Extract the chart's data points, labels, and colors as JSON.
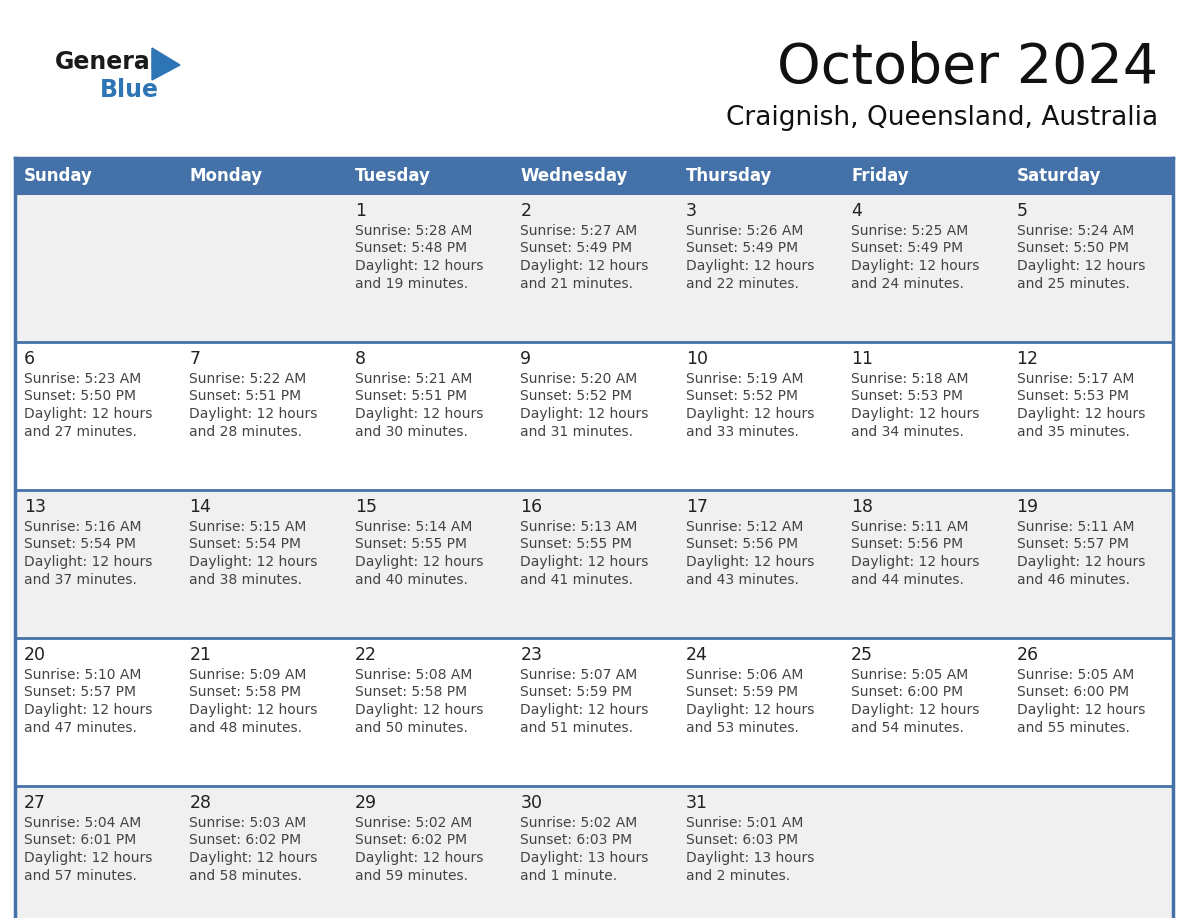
{
  "title": "October 2024",
  "subtitle": "Craignish, Queensland, Australia",
  "header_bg_color": "#4472A8",
  "header_text_color": "#FFFFFF",
  "day_headers": [
    "Sunday",
    "Monday",
    "Tuesday",
    "Wednesday",
    "Thursday",
    "Friday",
    "Saturday"
  ],
  "text_color": "#444444",
  "line_color": "#4472A8",
  "row_bg_colors": [
    "#F0F0F0",
    "#FFFFFF",
    "#F0F0F0",
    "#FFFFFF",
    "#F0F0F0"
  ],
  "days": [
    {
      "day": 1,
      "col": 2,
      "row": 0,
      "sunrise": "5:28 AM",
      "sunset": "5:48 PM",
      "daylight_l1": "Daylight: 12 hours",
      "daylight_l2": "and 19 minutes."
    },
    {
      "day": 2,
      "col": 3,
      "row": 0,
      "sunrise": "5:27 AM",
      "sunset": "5:49 PM",
      "daylight_l1": "Daylight: 12 hours",
      "daylight_l2": "and 21 minutes."
    },
    {
      "day": 3,
      "col": 4,
      "row": 0,
      "sunrise": "5:26 AM",
      "sunset": "5:49 PM",
      "daylight_l1": "Daylight: 12 hours",
      "daylight_l2": "and 22 minutes."
    },
    {
      "day": 4,
      "col": 5,
      "row": 0,
      "sunrise": "5:25 AM",
      "sunset": "5:49 PM",
      "daylight_l1": "Daylight: 12 hours",
      "daylight_l2": "and 24 minutes."
    },
    {
      "day": 5,
      "col": 6,
      "row": 0,
      "sunrise": "5:24 AM",
      "sunset": "5:50 PM",
      "daylight_l1": "Daylight: 12 hours",
      "daylight_l2": "and 25 minutes."
    },
    {
      "day": 6,
      "col": 0,
      "row": 1,
      "sunrise": "5:23 AM",
      "sunset": "5:50 PM",
      "daylight_l1": "Daylight: 12 hours",
      "daylight_l2": "and 27 minutes."
    },
    {
      "day": 7,
      "col": 1,
      "row": 1,
      "sunrise": "5:22 AM",
      "sunset": "5:51 PM",
      "daylight_l1": "Daylight: 12 hours",
      "daylight_l2": "and 28 minutes."
    },
    {
      "day": 8,
      "col": 2,
      "row": 1,
      "sunrise": "5:21 AM",
      "sunset": "5:51 PM",
      "daylight_l1": "Daylight: 12 hours",
      "daylight_l2": "and 30 minutes."
    },
    {
      "day": 9,
      "col": 3,
      "row": 1,
      "sunrise": "5:20 AM",
      "sunset": "5:52 PM",
      "daylight_l1": "Daylight: 12 hours",
      "daylight_l2": "and 31 minutes."
    },
    {
      "day": 10,
      "col": 4,
      "row": 1,
      "sunrise": "5:19 AM",
      "sunset": "5:52 PM",
      "daylight_l1": "Daylight: 12 hours",
      "daylight_l2": "and 33 minutes."
    },
    {
      "day": 11,
      "col": 5,
      "row": 1,
      "sunrise": "5:18 AM",
      "sunset": "5:53 PM",
      "daylight_l1": "Daylight: 12 hours",
      "daylight_l2": "and 34 minutes."
    },
    {
      "day": 12,
      "col": 6,
      "row": 1,
      "sunrise": "5:17 AM",
      "sunset": "5:53 PM",
      "daylight_l1": "Daylight: 12 hours",
      "daylight_l2": "and 35 minutes."
    },
    {
      "day": 13,
      "col": 0,
      "row": 2,
      "sunrise": "5:16 AM",
      "sunset": "5:54 PM",
      "daylight_l1": "Daylight: 12 hours",
      "daylight_l2": "and 37 minutes."
    },
    {
      "day": 14,
      "col": 1,
      "row": 2,
      "sunrise": "5:15 AM",
      "sunset": "5:54 PM",
      "daylight_l1": "Daylight: 12 hours",
      "daylight_l2": "and 38 minutes."
    },
    {
      "day": 15,
      "col": 2,
      "row": 2,
      "sunrise": "5:14 AM",
      "sunset": "5:55 PM",
      "daylight_l1": "Daylight: 12 hours",
      "daylight_l2": "and 40 minutes."
    },
    {
      "day": 16,
      "col": 3,
      "row": 2,
      "sunrise": "5:13 AM",
      "sunset": "5:55 PM",
      "daylight_l1": "Daylight: 12 hours",
      "daylight_l2": "and 41 minutes."
    },
    {
      "day": 17,
      "col": 4,
      "row": 2,
      "sunrise": "5:12 AM",
      "sunset": "5:56 PM",
      "daylight_l1": "Daylight: 12 hours",
      "daylight_l2": "and 43 minutes."
    },
    {
      "day": 18,
      "col": 5,
      "row": 2,
      "sunrise": "5:11 AM",
      "sunset": "5:56 PM",
      "daylight_l1": "Daylight: 12 hours",
      "daylight_l2": "and 44 minutes."
    },
    {
      "day": 19,
      "col": 6,
      "row": 2,
      "sunrise": "5:11 AM",
      "sunset": "5:57 PM",
      "daylight_l1": "Daylight: 12 hours",
      "daylight_l2": "and 46 minutes."
    },
    {
      "day": 20,
      "col": 0,
      "row": 3,
      "sunrise": "5:10 AM",
      "sunset": "5:57 PM",
      "daylight_l1": "Daylight: 12 hours",
      "daylight_l2": "and 47 minutes."
    },
    {
      "day": 21,
      "col": 1,
      "row": 3,
      "sunrise": "5:09 AM",
      "sunset": "5:58 PM",
      "daylight_l1": "Daylight: 12 hours",
      "daylight_l2": "and 48 minutes."
    },
    {
      "day": 22,
      "col": 2,
      "row": 3,
      "sunrise": "5:08 AM",
      "sunset": "5:58 PM",
      "daylight_l1": "Daylight: 12 hours",
      "daylight_l2": "and 50 minutes."
    },
    {
      "day": 23,
      "col": 3,
      "row": 3,
      "sunrise": "5:07 AM",
      "sunset": "5:59 PM",
      "daylight_l1": "Daylight: 12 hours",
      "daylight_l2": "and 51 minutes."
    },
    {
      "day": 24,
      "col": 4,
      "row": 3,
      "sunrise": "5:06 AM",
      "sunset": "5:59 PM",
      "daylight_l1": "Daylight: 12 hours",
      "daylight_l2": "and 53 minutes."
    },
    {
      "day": 25,
      "col": 5,
      "row": 3,
      "sunrise": "5:05 AM",
      "sunset": "6:00 PM",
      "daylight_l1": "Daylight: 12 hours",
      "daylight_l2": "and 54 minutes."
    },
    {
      "day": 26,
      "col": 6,
      "row": 3,
      "sunrise": "5:05 AM",
      "sunset": "6:00 PM",
      "daylight_l1": "Daylight: 12 hours",
      "daylight_l2": "and 55 minutes."
    },
    {
      "day": 27,
      "col": 0,
      "row": 4,
      "sunrise": "5:04 AM",
      "sunset": "6:01 PM",
      "daylight_l1": "Daylight: 12 hours",
      "daylight_l2": "and 57 minutes."
    },
    {
      "day": 28,
      "col": 1,
      "row": 4,
      "sunrise": "5:03 AM",
      "sunset": "6:02 PM",
      "daylight_l1": "Daylight: 12 hours",
      "daylight_l2": "and 58 minutes."
    },
    {
      "day": 29,
      "col": 2,
      "row": 4,
      "sunrise": "5:02 AM",
      "sunset": "6:02 PM",
      "daylight_l1": "Daylight: 12 hours",
      "daylight_l2": "and 59 minutes."
    },
    {
      "day": 30,
      "col": 3,
      "row": 4,
      "sunrise": "5:02 AM",
      "sunset": "6:03 PM",
      "daylight_l1": "Daylight: 13 hours",
      "daylight_l2": "and 1 minute."
    },
    {
      "day": 31,
      "col": 4,
      "row": 4,
      "sunrise": "5:01 AM",
      "sunset": "6:03 PM",
      "daylight_l1": "Daylight: 13 hours",
      "daylight_l2": "and 2 minutes."
    }
  ],
  "logo_general_color": "#1a1a1a",
  "logo_blue_color": "#2E75B6",
  "logo_triangle_color": "#2E75B6"
}
